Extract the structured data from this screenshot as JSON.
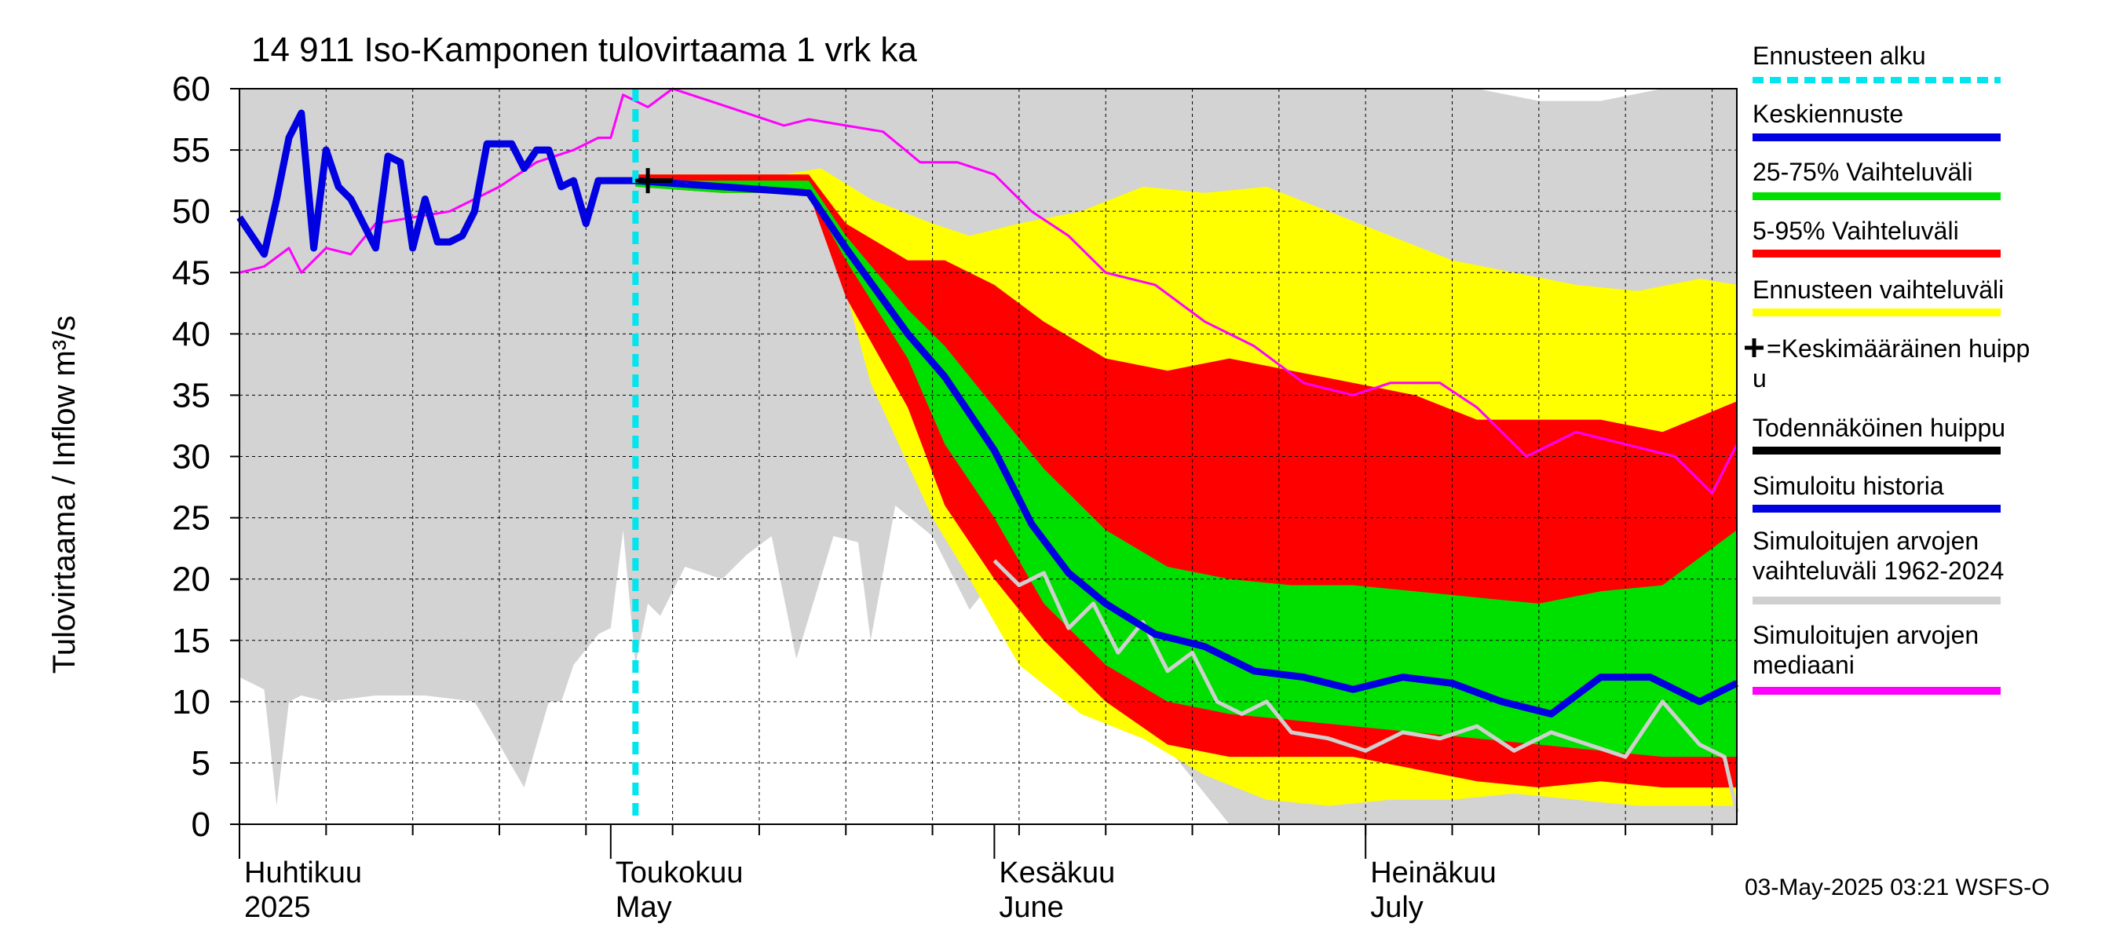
{
  "chart_data": {
    "type": "area",
    "title": "14 911 Iso-Kamponen tulovirtaama 1 vrk ka",
    "ylabel": "Tulovirtaama / Inflow    m³/s",
    "ylim": [
      0,
      60
    ],
    "yticks": [
      0,
      5,
      10,
      15,
      20,
      25,
      30,
      35,
      40,
      45,
      50,
      55,
      60
    ],
    "xlim": [
      "2025-04-01",
      "2025-07-31"
    ],
    "month_labels": [
      {
        "date": "2025-04-01",
        "fi": "Huhtikuu",
        "en": "2025"
      },
      {
        "date": "2025-05-01",
        "fi": "Toukokuu",
        "en": "May"
      },
      {
        "date": "2025-06-01",
        "fi": "Kesäkuu",
        "en": "June"
      },
      {
        "date": "2025-07-01",
        "fi": "Heinäkuu",
        "en": "July"
      }
    ],
    "forecast_start": "2025-05-03",
    "grid": true,
    "legend_position": "right",
    "legend": [
      {
        "label": "Ennusteen alku",
        "color": "#00e5ee",
        "style": "dashed"
      },
      {
        "label": "Keskiennuste",
        "color": "#0000e0",
        "style": "line"
      },
      {
        "label": "25-75% Vaihteluväli",
        "color": "#00e000",
        "style": "line"
      },
      {
        "label": "5-95% Vaihteluväli",
        "color": "#ff0000",
        "style": "line"
      },
      {
        "label": "Ennusteen vaihteluväli",
        "color": "#ffff00",
        "style": "line"
      },
      {
        "label": "+=Keskimääräinen huipp\nu",
        "color": "#000000",
        "style": "marker"
      },
      {
        "label": "Todennäköinen huippu",
        "color": "#000000",
        "style": "line"
      },
      {
        "label": "Simuloitu historia",
        "color": "#0000e0",
        "style": "line"
      },
      {
        "label": "Simuloitujen arvojen\nvaihteluväli 1962-2024",
        "color": "#d0d0d0",
        "style": "line"
      },
      {
        "label": "Simuloitujen arvojen\nmediaani",
        "color": "#ff00ff",
        "style": "line"
      }
    ],
    "colors": {
      "hist_range": "#d3d3d3",
      "forecast_range": "#ffff00",
      "p5_95": "#ff0000",
      "p25_75": "#00e000",
      "mean_forecast": "#0000e0",
      "history": "#0000e0",
      "median": "#ff00ff",
      "forecast_start": "#00e5ee",
      "sim_gray": "#d0d0d0"
    },
    "series": {
      "hist_range": {
        "x": [
          "2025-04-01",
          "2025-04-03",
          "2025-04-04",
          "2025-04-05",
          "2025-04-06",
          "2025-04-08",
          "2025-04-12",
          "2025-04-16",
          "2025-04-20",
          "2025-04-24",
          "2025-04-26",
          "2025-04-27",
          "2025-04-28",
          "2025-04-30",
          "2025-05-01",
          "2025-05-02",
          "2025-05-03",
          "2025-05-04",
          "2025-05-05",
          "2025-05-07",
          "2025-05-10",
          "2025-05-12",
          "2025-05-14",
          "2025-05-16",
          "2025-05-19",
          "2025-05-21",
          "2025-05-22",
          "2025-05-24",
          "2025-05-27",
          "2025-05-30",
          "2025-06-01",
          "2025-06-03",
          "2025-06-05",
          "2025-06-08",
          "2025-06-12",
          "2025-06-16",
          "2025-06-20",
          "2025-06-25",
          "2025-07-01",
          "2025-07-05",
          "2025-07-10",
          "2025-07-15",
          "2025-07-20",
          "2025-07-25",
          "2025-07-31"
        ],
        "lower": [
          12,
          11,
          1.5,
          10,
          10.5,
          10,
          10.5,
          10.5,
          10,
          3,
          10,
          10,
          13,
          15.5,
          16,
          24,
          13,
          18,
          17,
          21,
          20,
          22,
          23.5,
          13.5,
          23.5,
          23,
          15,
          26,
          23.5,
          17.5,
          20,
          18,
          20,
          16,
          10,
          5,
          0,
          0,
          0,
          0,
          0,
          0,
          0,
          0,
          0
        ],
        "upper": [
          60,
          60,
          60,
          60,
          60,
          60,
          60,
          60,
          60,
          60,
          60,
          60,
          60,
          60,
          60,
          60,
          60,
          60,
          60,
          60,
          60,
          60,
          60,
          60,
          60,
          60,
          60,
          60,
          60,
          60,
          60,
          60,
          60,
          60,
          60,
          60,
          60,
          60,
          60,
          60,
          60,
          59,
          59,
          60,
          60
        ]
      },
      "forecast_range": {
        "x": [
          "2025-05-03",
          "2025-05-05",
          "2025-05-10",
          "2025-05-15",
          "2025-05-18",
          "2025-05-22",
          "2025-05-27",
          "2025-05-30",
          "2025-06-03",
          "2025-06-08",
          "2025-06-13",
          "2025-06-18",
          "2025-06-23",
          "2025-06-28",
          "2025-07-03",
          "2025-07-08",
          "2025-07-13",
          "2025-07-18",
          "2025-07-23",
          "2025-07-28",
          "2025-07-31"
        ],
        "lower": [
          52,
          52,
          51.5,
          51.5,
          51,
          36,
          25,
          20,
          13,
          9,
          7,
          4,
          2,
          1.5,
          2,
          2,
          2.5,
          2,
          1.5,
          1.5,
          1.5
        ],
        "upper": [
          53,
          53,
          53,
          53,
          53.5,
          51,
          49,
          48,
          49,
          50,
          52,
          51.5,
          52,
          50,
          48,
          46,
          45,
          44,
          43.5,
          44.5,
          44
        ]
      },
      "p5_95": {
        "x": [
          "2025-05-03",
          "2025-05-10",
          "2025-05-17",
          "2025-05-20",
          "2025-05-25",
          "2025-05-28",
          "2025-06-01",
          "2025-06-05",
          "2025-06-10",
          "2025-06-15",
          "2025-06-20",
          "2025-06-25",
          "2025-06-30",
          "2025-07-05",
          "2025-07-10",
          "2025-07-15",
          "2025-07-20",
          "2025-07-25",
          "2025-07-31"
        ],
        "lower": [
          52,
          51.5,
          51.5,
          43,
          34,
          26,
          20,
          15,
          10,
          6.5,
          5.5,
          5.5,
          5.5,
          4.5,
          3.5,
          3,
          3.5,
          3,
          3
        ],
        "upper": [
          53,
          53,
          53,
          49,
          46,
          46,
          44,
          41,
          38,
          37,
          38,
          37,
          36,
          35,
          33,
          33,
          33,
          32,
          34.5
        ]
      },
      "p25_75": {
        "x": [
          "2025-05-03",
          "2025-05-10",
          "2025-05-17",
          "2025-05-20",
          "2025-05-25",
          "2025-05-28",
          "2025-06-01",
          "2025-06-05",
          "2025-06-10",
          "2025-06-15",
          "2025-06-20",
          "2025-06-25",
          "2025-06-30",
          "2025-07-05",
          "2025-07-10",
          "2025-07-15",
          "2025-07-20",
          "2025-07-25",
          "2025-07-31"
        ],
        "lower": [
          52,
          51.5,
          51.5,
          46,
          38,
          31,
          25,
          18,
          13,
          10,
          9,
          8.5,
          8,
          7.5,
          7,
          6.5,
          6,
          5.5,
          5.5
        ],
        "upper": [
          52.5,
          52.5,
          52.5,
          48,
          42,
          39,
          34,
          29,
          24,
          21,
          20,
          19.5,
          19.5,
          19,
          18.5,
          18,
          19,
          19.5,
          24
        ]
      },
      "mean_forecast": {
        "x": [
          "2025-05-03",
          "2025-05-10",
          "2025-05-17",
          "2025-05-20",
          "2025-05-25",
          "2025-05-28",
          "2025-06-01",
          "2025-06-04",
          "2025-06-07",
          "2025-06-10",
          "2025-06-14",
          "2025-06-18",
          "2025-06-22",
          "2025-06-26",
          "2025-06-30",
          "2025-07-04",
          "2025-07-08",
          "2025-07-12",
          "2025-07-16",
          "2025-07-20",
          "2025-07-24",
          "2025-07-28",
          "2025-07-31"
        ],
        "values": [
          52.5,
          52,
          51.5,
          47,
          40,
          36.5,
          30.5,
          24.5,
          20.5,
          18,
          15.5,
          14.5,
          12.5,
          12,
          11,
          12,
          11.5,
          10,
          9,
          12,
          12,
          10,
          11.5
        ]
      },
      "history": {
        "x": [
          "2025-04-01",
          "2025-04-02",
          "2025-04-03",
          "2025-04-04",
          "2025-04-05",
          "2025-04-06",
          "2025-04-07",
          "2025-04-08",
          "2025-04-09",
          "2025-04-10",
          "2025-04-11",
          "2025-04-12",
          "2025-04-13",
          "2025-04-14",
          "2025-04-15",
          "2025-04-16",
          "2025-04-17",
          "2025-04-18",
          "2025-04-19",
          "2025-04-20",
          "2025-04-21",
          "2025-04-22",
          "2025-04-23",
          "2025-04-24",
          "2025-04-25",
          "2025-04-26",
          "2025-04-27",
          "2025-04-28",
          "2025-04-29",
          "2025-04-30",
          "2025-05-01",
          "2025-05-02",
          "2025-05-03"
        ],
        "values": [
          49.5,
          48,
          46.5,
          51,
          56,
          58,
          47,
          55,
          52,
          51,
          49,
          47,
          54.5,
          54,
          47,
          51,
          47.5,
          47.5,
          48,
          50,
          55.5,
          55.5,
          55.5,
          53.5,
          55,
          55,
          52,
          52.5,
          49,
          52.5,
          52.5,
          52.5,
          52.5
        ]
      },
      "median": {
        "x": [
          "2025-04-01",
          "2025-04-03",
          "2025-04-05",
          "2025-04-06",
          "2025-04-08",
          "2025-04-10",
          "2025-04-12",
          "2025-04-15",
          "2025-04-18",
          "2025-04-20",
          "2025-04-22",
          "2025-04-25",
          "2025-04-28",
          "2025-04-30",
          "2025-05-01",
          "2025-05-02",
          "2025-05-04",
          "2025-05-06",
          "2025-05-09",
          "2025-05-12",
          "2025-05-15",
          "2025-05-17",
          "2025-05-20",
          "2025-05-23",
          "2025-05-26",
          "2025-05-29",
          "2025-06-01",
          "2025-06-04",
          "2025-06-07",
          "2025-06-10",
          "2025-06-14",
          "2025-06-18",
          "2025-06-22",
          "2025-06-26",
          "2025-06-30",
          "2025-07-03",
          "2025-07-07",
          "2025-07-10",
          "2025-07-14",
          "2025-07-18",
          "2025-07-22",
          "2025-07-26",
          "2025-07-29",
          "2025-07-31"
        ],
        "values": [
          45,
          45.5,
          47,
          45,
          47,
          46.5,
          49,
          49.5,
          50,
          51,
          52,
          54,
          55,
          56,
          56,
          59.5,
          58.5,
          60,
          59,
          58,
          57,
          57.5,
          57,
          56.5,
          54,
          54,
          53,
          50,
          48,
          45,
          44,
          41,
          39,
          36,
          35,
          36,
          36,
          34,
          30,
          32,
          31,
          30,
          27,
          31
        ]
      },
      "sim_gray": {
        "x": [
          "2025-06-01",
          "2025-06-03",
          "2025-06-05",
          "2025-06-07",
          "2025-06-09",
          "2025-06-11",
          "2025-06-13",
          "2025-06-15",
          "2025-06-17",
          "2025-06-19",
          "2025-06-21",
          "2025-06-23",
          "2025-06-25",
          "2025-06-28",
          "2025-07-01",
          "2025-07-04",
          "2025-07-07",
          "2025-07-10",
          "2025-07-13",
          "2025-07-16",
          "2025-07-19",
          "2025-07-22",
          "2025-07-25",
          "2025-07-28",
          "2025-07-30",
          "2025-07-31"
        ],
        "values": [
          21.5,
          19.5,
          20.5,
          16,
          18,
          14,
          16.5,
          12.5,
          14,
          10,
          9,
          10,
          7.5,
          7,
          6,
          7.5,
          7,
          8,
          6,
          7.5,
          6.5,
          5.5,
          10,
          6.5,
          5.5,
          1
        ]
      },
      "avg_peak": {
        "x": "2025-05-04",
        "y": 52.5
      },
      "probable_peak": {
        "x": [
          "2025-05-03",
          "2025-05-06"
        ],
        "values": [
          52.5,
          52.5
        ]
      }
    }
  },
  "footer": {
    "timestamp": "03-May-2025 03:21 WSFS-O"
  }
}
